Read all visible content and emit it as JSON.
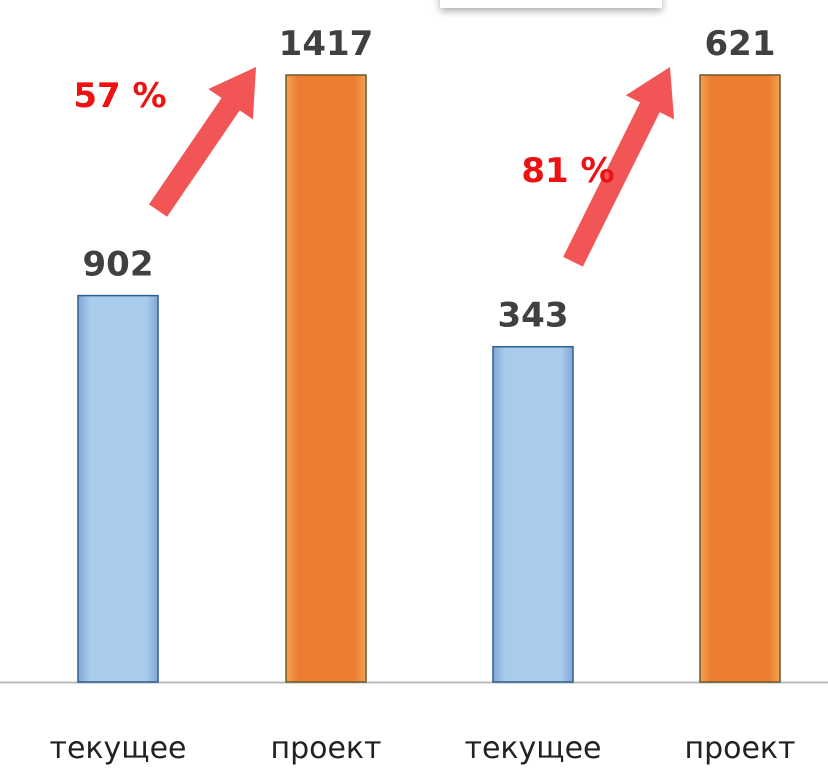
{
  "chart_data": [
    {
      "type": "bar",
      "categories": [
        "текущее",
        "проект"
      ],
      "values": [
        902,
        1417
      ],
      "colors": [
        "#9dc3e6",
        "#ed7d31"
      ],
      "ylim": [
        0,
        1417
      ],
      "annotation": "57 %"
    },
    {
      "type": "bar",
      "categories": [
        "текущее",
        "проект"
      ],
      "values": [
        343,
        621
      ],
      "colors": [
        "#9dc3e6",
        "#ed7d31"
      ],
      "ylim": [
        0,
        621
      ],
      "annotation": "81 %"
    }
  ]
}
